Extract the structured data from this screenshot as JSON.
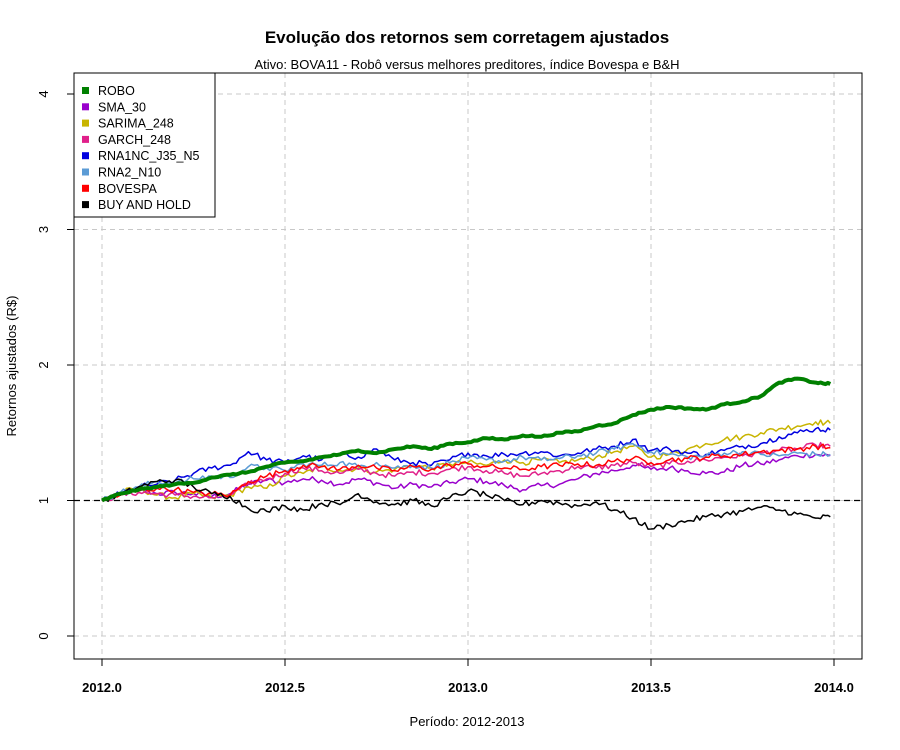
{
  "chart_data": {
    "type": "line",
    "title": "Evolução dos retornos sem corretagem ajustados",
    "subtitle": "Ativo: BOVA11 - Robô versus melhores preditores, índice Bovespa e B&H",
    "xlabel": "Período: 2012-2013",
    "ylabel": "Retornos ajustados (R$)",
    "xlim": [
      2012.0,
      2014.0
    ],
    "ylim": [
      0,
      4
    ],
    "xticks": [
      "2012.0",
      "2012.5",
      "2013.0",
      "2013.5",
      "2014.0"
    ],
    "yticks": [
      "0",
      "1",
      "2",
      "3",
      "4"
    ],
    "grid": true,
    "legend_position": "top-left",
    "reference_line": {
      "y": 1,
      "style": "dashed",
      "color": "#000000"
    },
    "series": [
      {
        "name": "ROBO",
        "color": "#008000",
        "width": 4,
        "x": [
          2012.0,
          2012.05,
          2012.1,
          2012.15,
          2012.2,
          2012.25,
          2012.3,
          2012.35,
          2012.4,
          2012.45,
          2012.5,
          2012.55,
          2012.6,
          2012.65,
          2012.7,
          2012.75,
          2012.8,
          2012.85,
          2012.9,
          2012.95,
          2013.0,
          2013.05,
          2013.1,
          2013.15,
          2013.2,
          2013.25,
          2013.3,
          2013.35,
          2013.4,
          2013.45,
          2013.5,
          2013.55,
          2013.6,
          2013.65,
          2013.7,
          2013.75,
          2013.8,
          2013.85,
          2013.9,
          2013.95,
          2013.99
        ],
        "y": [
          1.0,
          1.05,
          1.08,
          1.1,
          1.12,
          1.13,
          1.17,
          1.19,
          1.21,
          1.25,
          1.28,
          1.29,
          1.32,
          1.34,
          1.37,
          1.35,
          1.38,
          1.4,
          1.38,
          1.42,
          1.43,
          1.46,
          1.45,
          1.48,
          1.47,
          1.5,
          1.51,
          1.55,
          1.57,
          1.63,
          1.67,
          1.69,
          1.68,
          1.67,
          1.71,
          1.73,
          1.77,
          1.87,
          1.9,
          1.87,
          1.86
        ]
      },
      {
        "name": "SMA_30",
        "color": "#9900CC",
        "width": 1.5,
        "x": [
          2012.0,
          2012.05,
          2012.1,
          2012.15,
          2012.2,
          2012.25,
          2012.3,
          2012.35,
          2012.4,
          2012.45,
          2012.5,
          2012.55,
          2012.6,
          2012.65,
          2012.7,
          2012.75,
          2012.8,
          2012.85,
          2012.9,
          2012.95,
          2013.0,
          2013.05,
          2013.1,
          2013.15,
          2013.2,
          2013.25,
          2013.3,
          2013.35,
          2013.4,
          2013.45,
          2013.5,
          2013.55,
          2013.6,
          2013.65,
          2013.7,
          2013.75,
          2013.8,
          2013.85,
          2013.9,
          2013.95,
          2013.99
        ],
        "y": [
          1.0,
          1.04,
          1.08,
          1.05,
          1.06,
          1.05,
          1.03,
          1.05,
          1.12,
          1.15,
          1.13,
          1.16,
          1.15,
          1.12,
          1.16,
          1.13,
          1.09,
          1.12,
          1.1,
          1.13,
          1.16,
          1.14,
          1.11,
          1.08,
          1.11,
          1.12,
          1.16,
          1.2,
          1.22,
          1.26,
          1.23,
          1.24,
          1.22,
          1.2,
          1.21,
          1.26,
          1.27,
          1.3,
          1.33,
          1.34,
          1.33
        ]
      },
      {
        "name": "SARIMA_248",
        "color": "#C8B400",
        "width": 1.5,
        "x": [
          2012.0,
          2012.05,
          2012.1,
          2012.15,
          2012.2,
          2012.25,
          2012.3,
          2012.35,
          2012.4,
          2012.45,
          2012.5,
          2012.55,
          2012.6,
          2012.65,
          2012.7,
          2012.75,
          2012.8,
          2012.85,
          2012.9,
          2012.95,
          2013.0,
          2013.05,
          2013.1,
          2013.15,
          2013.2,
          2013.25,
          2013.3,
          2013.35,
          2013.4,
          2013.45,
          2013.5,
          2013.55,
          2013.6,
          2013.65,
          2013.7,
          2013.75,
          2013.8,
          2013.85,
          2013.9,
          2013.95,
          2013.99
        ],
        "y": [
          1.0,
          1.06,
          1.09,
          1.04,
          1.02,
          1.05,
          1.02,
          1.04,
          1.1,
          1.09,
          1.18,
          1.2,
          1.25,
          1.22,
          1.24,
          1.21,
          1.23,
          1.26,
          1.24,
          1.27,
          1.28,
          1.26,
          1.3,
          1.28,
          1.3,
          1.28,
          1.3,
          1.32,
          1.36,
          1.4,
          1.32,
          1.34,
          1.38,
          1.42,
          1.45,
          1.47,
          1.5,
          1.53,
          1.55,
          1.58,
          1.57
        ]
      },
      {
        "name": "GARCH_248",
        "color": "#E0208A",
        "width": 1.5,
        "x": [
          2012.0,
          2012.05,
          2012.1,
          2012.15,
          2012.2,
          2012.25,
          2012.3,
          2012.35,
          2012.4,
          2012.45,
          2012.5,
          2012.55,
          2012.6,
          2012.65,
          2012.7,
          2012.75,
          2012.8,
          2012.85,
          2012.9,
          2012.95,
          2013.0,
          2013.05,
          2013.1,
          2013.15,
          2013.2,
          2013.25,
          2013.3,
          2013.35,
          2013.4,
          2013.45,
          2013.5,
          2013.55,
          2013.6,
          2013.65,
          2013.7,
          2013.75,
          2013.8,
          2013.85,
          2013.9,
          2013.95,
          2013.99
        ],
        "y": [
          1.0,
          1.04,
          1.06,
          1.05,
          1.04,
          1.03,
          1.02,
          1.04,
          1.12,
          1.16,
          1.2,
          1.24,
          1.22,
          1.2,
          1.23,
          1.2,
          1.18,
          1.21,
          1.2,
          1.23,
          1.25,
          1.22,
          1.2,
          1.18,
          1.2,
          1.22,
          1.25,
          1.24,
          1.26,
          1.28,
          1.25,
          1.27,
          1.29,
          1.3,
          1.32,
          1.33,
          1.35,
          1.37,
          1.38,
          1.41,
          1.4
        ]
      },
      {
        "name": "RNA1NC_J35_N5",
        "color": "#0000E0",
        "width": 1.5,
        "x": [
          2012.0,
          2012.05,
          2012.1,
          2012.15,
          2012.2,
          2012.25,
          2012.3,
          2012.35,
          2012.4,
          2012.45,
          2012.5,
          2012.55,
          2012.6,
          2012.65,
          2012.7,
          2012.75,
          2012.8,
          2012.85,
          2012.9,
          2012.95,
          2013.0,
          2013.05,
          2013.1,
          2013.15,
          2013.2,
          2013.25,
          2013.3,
          2013.35,
          2013.4,
          2013.45,
          2013.5,
          2013.55,
          2013.6,
          2013.65,
          2013.7,
          2013.75,
          2013.8,
          2013.85,
          2013.9,
          2013.95,
          2013.99
        ],
        "y": [
          1.0,
          1.05,
          1.1,
          1.12,
          1.15,
          1.2,
          1.24,
          1.26,
          1.36,
          1.3,
          1.28,
          1.33,
          1.3,
          1.34,
          1.32,
          1.38,
          1.3,
          1.28,
          1.26,
          1.3,
          1.35,
          1.33,
          1.34,
          1.35,
          1.36,
          1.33,
          1.35,
          1.38,
          1.4,
          1.45,
          1.37,
          1.38,
          1.35,
          1.34,
          1.37,
          1.4,
          1.42,
          1.47,
          1.5,
          1.53,
          1.52
        ]
      },
      {
        "name": "RNA2_N10",
        "color": "#5B9BD5",
        "width": 1.5,
        "x": [
          2012.0,
          2012.05,
          2012.1,
          2012.15,
          2012.2,
          2012.25,
          2012.3,
          2012.35,
          2012.4,
          2012.45,
          2012.5,
          2012.55,
          2012.6,
          2012.65,
          2012.7,
          2012.75,
          2012.8,
          2012.85,
          2012.9,
          2012.95,
          2013.0,
          2013.05,
          2013.1,
          2013.15,
          2013.2,
          2013.25,
          2013.3,
          2013.35,
          2013.4,
          2013.45,
          2013.5,
          2013.55,
          2013.6,
          2013.65,
          2013.7,
          2013.75,
          2013.8,
          2013.85,
          2013.9,
          2013.95,
          2013.99
        ],
        "y": [
          1.0,
          1.06,
          1.1,
          1.14,
          1.13,
          1.16,
          1.18,
          1.17,
          1.25,
          1.24,
          1.22,
          1.27,
          1.26,
          1.28,
          1.25,
          1.28,
          1.24,
          1.26,
          1.24,
          1.28,
          1.31,
          1.3,
          1.29,
          1.32,
          1.3,
          1.31,
          1.33,
          1.35,
          1.38,
          1.42,
          1.36,
          1.34,
          1.32,
          1.33,
          1.35,
          1.36,
          1.34,
          1.33,
          1.35,
          1.34,
          1.34
        ]
      },
      {
        "name": "BOVESPA",
        "color": "#FF0000",
        "width": 1.5,
        "x": [
          2012.0,
          2012.05,
          2012.1,
          2012.15,
          2012.2,
          2012.25,
          2012.3,
          2012.35,
          2012.4,
          2012.45,
          2012.5,
          2012.55,
          2012.6,
          2012.65,
          2012.7,
          2012.75,
          2012.8,
          2012.85,
          2012.9,
          2012.95,
          2013.0,
          2013.05,
          2013.1,
          2013.15,
          2013.2,
          2013.25,
          2013.3,
          2013.35,
          2013.4,
          2013.45,
          2013.5,
          2013.55,
          2013.6,
          2013.65,
          2013.7,
          2013.75,
          2013.8,
          2013.85,
          2013.9,
          2013.95,
          2013.99
        ],
        "y": [
          1.0,
          1.04,
          1.07,
          1.09,
          1.08,
          1.06,
          1.05,
          1.04,
          1.14,
          1.18,
          1.22,
          1.26,
          1.25,
          1.23,
          1.26,
          1.24,
          1.22,
          1.25,
          1.23,
          1.26,
          1.27,
          1.25,
          1.24,
          1.23,
          1.25,
          1.26,
          1.27,
          1.26,
          1.29,
          1.31,
          1.28,
          1.3,
          1.31,
          1.32,
          1.33,
          1.34,
          1.36,
          1.37,
          1.38,
          1.4,
          1.39
        ]
      },
      {
        "name": "BUY AND HOLD",
        "color": "#000000",
        "width": 1.5,
        "x": [
          2012.0,
          2012.05,
          2012.1,
          2012.15,
          2012.2,
          2012.25,
          2012.3,
          2012.35,
          2012.4,
          2012.45,
          2012.5,
          2012.55,
          2012.6,
          2012.65,
          2012.7,
          2012.75,
          2012.8,
          2012.85,
          2012.9,
          2012.95,
          2013.0,
          2013.05,
          2013.1,
          2013.15,
          2013.2,
          2013.25,
          2013.3,
          2013.35,
          2013.4,
          2013.45,
          2013.5,
          2013.55,
          2013.6,
          2013.65,
          2013.7,
          2013.75,
          2013.8,
          2013.85,
          2013.9,
          2013.95,
          2013.99
        ],
        "y": [
          1.0,
          1.04,
          1.1,
          1.14,
          1.15,
          1.1,
          1.05,
          1.03,
          0.94,
          0.92,
          0.96,
          0.93,
          0.98,
          0.97,
          1.05,
          0.99,
          0.97,
          1.0,
          0.96,
          1.02,
          1.07,
          1.04,
          1.0,
          0.97,
          1.0,
          0.98,
          0.96,
          0.99,
          0.93,
          0.87,
          0.79,
          0.82,
          0.85,
          0.88,
          0.9,
          0.92,
          0.95,
          0.93,
          0.9,
          0.87,
          0.88
        ]
      }
    ]
  }
}
